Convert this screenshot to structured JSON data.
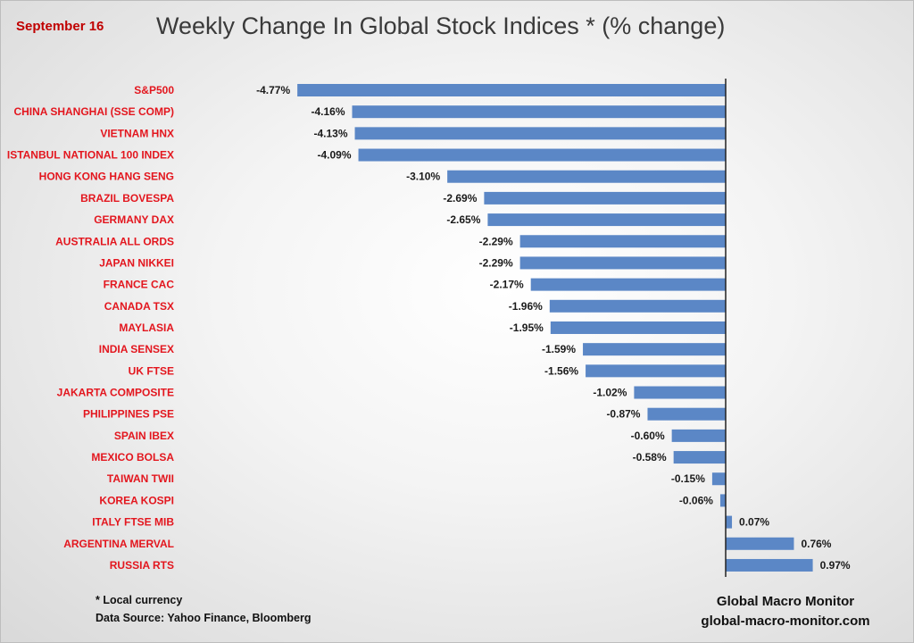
{
  "header": {
    "date": "September 16",
    "title": "Weekly Change In Global Stock Indices * (% change)"
  },
  "footer": {
    "note": "* Local currency",
    "source": "Data Source:  Yahoo Finance, Bloomberg",
    "brand": "Global Macro Monitor",
    "site": "global-macro-monitor.com"
  },
  "colors": {
    "bar": "#5b87c6",
    "label": "#e3161e"
  },
  "chart_data": {
    "type": "bar",
    "orientation": "horizontal",
    "title": "Weekly Change In Global Stock Indices * (% change)",
    "categories": [
      "S&P500",
      "CHINA SHANGHAI (SSE COMP)",
      "VIETNAM HNX",
      "ISTANBUL NATIONAL 100 INDEX",
      "HONG KONG HANG SENG",
      "BRAZIL BOVESPA",
      "GERMANY DAX",
      "AUSTRALIA ALL ORDS",
      "JAPAN NIKKEI",
      "FRANCE CAC",
      "CANADA TSX",
      "MAYLASIA",
      "INDIA SENSEX",
      "UK FTSE",
      "JAKARTA COMPOSITE",
      "PHILIPPINES PSE",
      "SPAIN IBEX",
      "MEXICO BOLSA",
      "TAIWAN  TWII",
      "KOREA KOSPI",
      "ITALY FTSE MIB",
      "ARGENTINA MERVAL",
      "RUSSIA RTS"
    ],
    "values": [
      -4.77,
      -4.16,
      -4.13,
      -4.09,
      -3.1,
      -2.69,
      -2.65,
      -2.29,
      -2.29,
      -2.17,
      -1.96,
      -1.95,
      -1.59,
      -1.56,
      -1.02,
      -0.87,
      -0.6,
      -0.58,
      -0.15,
      -0.06,
      0.07,
      0.76,
      0.97
    ],
    "data_labels": [
      "-4.77%",
      "-4.16%",
      "-4.13%",
      "-4.09%",
      "-3.10%",
      "-2.69%",
      "-2.65%",
      "-2.29%",
      "-2.29%",
      "-2.17%",
      "-1.96%",
      "-1.95%",
      "-1.59%",
      "-1.56%",
      "-1.02%",
      "-0.87%",
      "-0.60%",
      "-0.58%",
      "-0.15%",
      "-0.06%",
      "0.07%",
      "0.76%",
      "0.97%"
    ],
    "xlabel": "",
    "ylabel": "",
    "grid": false,
    "legend": "none"
  }
}
